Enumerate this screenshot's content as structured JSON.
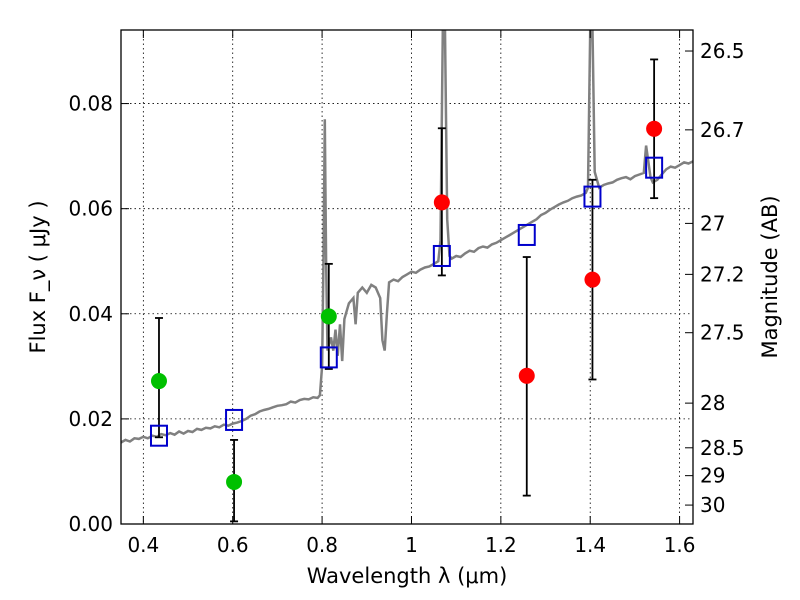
{
  "chart_data": {
    "type": "scatter",
    "title": "",
    "xlabel": "Wavelength  λ (μm)",
    "ylabel": "Flux  F_ν  ( μJy )",
    "ylabel_right": "Magnitude (AB)",
    "xlim": [
      0.35,
      1.63
    ],
    "ylim": [
      0.0,
      0.094
    ],
    "x_ticks": [
      0.4,
      0.6,
      0.8,
      1.0,
      1.2,
      1.4,
      1.6
    ],
    "x_tick_labels": [
      "0.4",
      "0.6",
      "0.8",
      "1",
      "1.2",
      "1.4",
      "1.6"
    ],
    "y_ticks": [
      0.0,
      0.02,
      0.04,
      0.06,
      0.08
    ],
    "y_tick_labels": [
      "0.00",
      "0.02",
      "0.04",
      "0.06",
      "0.08"
    ],
    "right_ticks": [
      {
        "flux": 0.09,
        "label": "26.5"
      },
      {
        "flux": 0.075,
        "label": "26.7"
      },
      {
        "flux": 0.0572,
        "label": "27"
      },
      {
        "flux": 0.0475,
        "label": "27.2"
      },
      {
        "flux": 0.0364,
        "label": "27.5"
      },
      {
        "flux": 0.023,
        "label": "28"
      },
      {
        "flux": 0.0145,
        "label": "28.5"
      },
      {
        "flux": 0.0092,
        "label": "29"
      },
      {
        "flux": 0.0036,
        "label": "30"
      }
    ],
    "grid": true,
    "colors": {
      "template": "#808080",
      "model": "#0000cc",
      "green": "#00c000",
      "red": "#ff0000",
      "errorbar": "#000000"
    },
    "series": [
      {
        "kind": "line",
        "points": [
          [
            0.35,
            0.0155
          ],
          [
            0.36,
            0.016
          ],
          [
            0.37,
            0.0157
          ],
          [
            0.38,
            0.0163
          ],
          [
            0.39,
            0.0162
          ],
          [
            0.4,
            0.0166
          ],
          [
            0.41,
            0.0163
          ],
          [
            0.42,
            0.0168
          ],
          [
            0.43,
            0.0166
          ],
          [
            0.44,
            0.0171
          ],
          [
            0.45,
            0.0169
          ],
          [
            0.46,
            0.0173
          ],
          [
            0.47,
            0.017
          ],
          [
            0.48,
            0.0176
          ],
          [
            0.49,
            0.0172
          ],
          [
            0.5,
            0.0177
          ],
          [
            0.51,
            0.0175
          ],
          [
            0.52,
            0.0181
          ],
          [
            0.53,
            0.0179
          ],
          [
            0.54,
            0.0183
          ],
          [
            0.55,
            0.0182
          ],
          [
            0.56,
            0.0186
          ],
          [
            0.57,
            0.0184
          ],
          [
            0.58,
            0.0189
          ],
          [
            0.59,
            0.0187
          ],
          [
            0.6,
            0.0191
          ],
          [
            0.61,
            0.0193
          ],
          [
            0.62,
            0.0196
          ],
          [
            0.63,
            0.02
          ],
          [
            0.64,
            0.0206
          ],
          [
            0.65,
            0.0209
          ],
          [
            0.66,
            0.0214
          ],
          [
            0.67,
            0.0217
          ],
          [
            0.68,
            0.0219
          ],
          [
            0.69,
            0.0222
          ],
          [
            0.7,
            0.0225
          ],
          [
            0.71,
            0.0226
          ],
          [
            0.72,
            0.0228
          ],
          [
            0.73,
            0.0233
          ],
          [
            0.74,
            0.0231
          ],
          [
            0.75,
            0.0236
          ],
          [
            0.76,
            0.0238
          ],
          [
            0.77,
            0.0237
          ],
          [
            0.78,
            0.0241
          ],
          [
            0.79,
            0.024
          ],
          [
            0.795,
            0.0245
          ],
          [
            0.8,
            0.03
          ],
          [
            0.803,
            0.049
          ],
          [
            0.806,
            0.077
          ],
          [
            0.809,
            0.05
          ],
          [
            0.812,
            0.033
          ],
          [
            0.815,
            0.034
          ],
          [
            0.82,
            0.0355
          ],
          [
            0.825,
            0.033
          ],
          [
            0.83,
            0.037
          ],
          [
            0.835,
            0.032
          ],
          [
            0.84,
            0.038
          ],
          [
            0.845,
            0.031
          ],
          [
            0.85,
            0.039
          ],
          [
            0.86,
            0.042
          ],
          [
            0.87,
            0.043
          ],
          [
            0.875,
            0.038
          ],
          [
            0.88,
            0.044
          ],
          [
            0.89,
            0.045
          ],
          [
            0.9,
            0.044
          ],
          [
            0.91,
            0.0455
          ],
          [
            0.92,
            0.045
          ],
          [
            0.93,
            0.043
          ],
          [
            0.935,
            0.035
          ],
          [
            0.94,
            0.033
          ],
          [
            0.945,
            0.04
          ],
          [
            0.95,
            0.046
          ],
          [
            0.96,
            0.0465
          ],
          [
            0.97,
            0.0462
          ],
          [
            0.98,
            0.047
          ],
          [
            0.99,
            0.0475
          ],
          [
            1.0,
            0.048
          ],
          [
            1.01,
            0.0478
          ],
          [
            1.02,
            0.0484
          ],
          [
            1.03,
            0.0488
          ],
          [
            1.04,
            0.049
          ],
          [
            1.05,
            0.0495
          ],
          [
            1.06,
            0.05
          ],
          [
            1.065,
            0.054
          ],
          [
            1.07,
            0.094
          ],
          [
            1.075,
            0.094
          ],
          [
            1.08,
            0.058
          ],
          [
            1.085,
            0.051
          ],
          [
            1.09,
            0.0505
          ],
          [
            1.1,
            0.051
          ],
          [
            1.11,
            0.0508
          ],
          [
            1.12,
            0.0515
          ],
          [
            1.13,
            0.052
          ],
          [
            1.14,
            0.0518
          ],
          [
            1.15,
            0.0525
          ],
          [
            1.16,
            0.0528
          ],
          [
            1.17,
            0.0526
          ],
          [
            1.18,
            0.0532
          ],
          [
            1.19,
            0.0535
          ],
          [
            1.2,
            0.054
          ],
          [
            1.21,
            0.0545
          ],
          [
            1.22,
            0.055
          ],
          [
            1.23,
            0.0555
          ],
          [
            1.24,
            0.056
          ],
          [
            1.25,
            0.0565
          ],
          [
            1.26,
            0.057
          ],
          [
            1.27,
            0.0575
          ],
          [
            1.28,
            0.058
          ],
          [
            1.29,
            0.0588
          ],
          [
            1.3,
            0.0592
          ],
          [
            1.31,
            0.0598
          ],
          [
            1.32,
            0.0603
          ],
          [
            1.33,
            0.0608
          ],
          [
            1.34,
            0.0612
          ],
          [
            1.35,
            0.0615
          ],
          [
            1.36,
            0.062
          ],
          [
            1.37,
            0.0623
          ],
          [
            1.38,
            0.0625
          ],
          [
            1.39,
            0.063
          ],
          [
            1.395,
            0.064
          ],
          [
            1.4,
            0.094
          ],
          [
            1.405,
            0.094
          ],
          [
            1.41,
            0.067
          ],
          [
            1.42,
            0.064
          ],
          [
            1.43,
            0.0645
          ],
          [
            1.44,
            0.0648
          ],
          [
            1.45,
            0.065
          ],
          [
            1.46,
            0.0655
          ],
          [
            1.47,
            0.0658
          ],
          [
            1.48,
            0.066
          ],
          [
            1.49,
            0.0656
          ],
          [
            1.5,
            0.0662
          ],
          [
            1.51,
            0.0665
          ],
          [
            1.52,
            0.0668
          ],
          [
            1.525,
            0.072
          ],
          [
            1.53,
            0.069
          ],
          [
            1.535,
            0.066
          ],
          [
            1.54,
            0.065
          ],
          [
            1.55,
            0.0655
          ],
          [
            1.56,
            0.0665
          ],
          [
            1.57,
            0.0675
          ],
          [
            1.58,
            0.068
          ],
          [
            1.59,
            0.0678
          ],
          [
            1.6,
            0.0683
          ],
          [
            1.61,
            0.0688
          ],
          [
            1.62,
            0.0686
          ],
          [
            1.63,
            0.069
          ]
        ]
      },
      {
        "kind": "squares",
        "points": [
          [
            0.435,
            0.0168
          ],
          [
            0.603,
            0.0198
          ],
          [
            0.815,
            0.0317
          ],
          [
            1.068,
            0.051
          ],
          [
            1.258,
            0.055
          ],
          [
            1.405,
            0.0623
          ],
          [
            1.543,
            0.0678
          ]
        ]
      },
      {
        "kind": "dots",
        "color": "green",
        "points": [
          {
            "x": 0.435,
            "y": 0.0272,
            "lo": 0.0165,
            "hi": 0.0392
          },
          {
            "x": 0.603,
            "y": 0.008,
            "lo": 0.0005,
            "hi": 0.016
          },
          {
            "x": 0.815,
            "y": 0.0395,
            "lo": 0.0295,
            "hi": 0.0495
          }
        ]
      },
      {
        "kind": "dots",
        "color": "red",
        "points": [
          {
            "x": 1.068,
            "y": 0.0612,
            "lo": 0.0473,
            "hi": 0.0753
          },
          {
            "x": 1.258,
            "y": 0.0282,
            "lo": 0.0054,
            "hi": 0.0508
          },
          {
            "x": 1.405,
            "y": 0.0465,
            "lo": 0.0275,
            "hi": 0.0655
          },
          {
            "x": 1.543,
            "y": 0.0752,
            "lo": 0.062,
            "hi": 0.0884
          }
        ]
      }
    ]
  }
}
